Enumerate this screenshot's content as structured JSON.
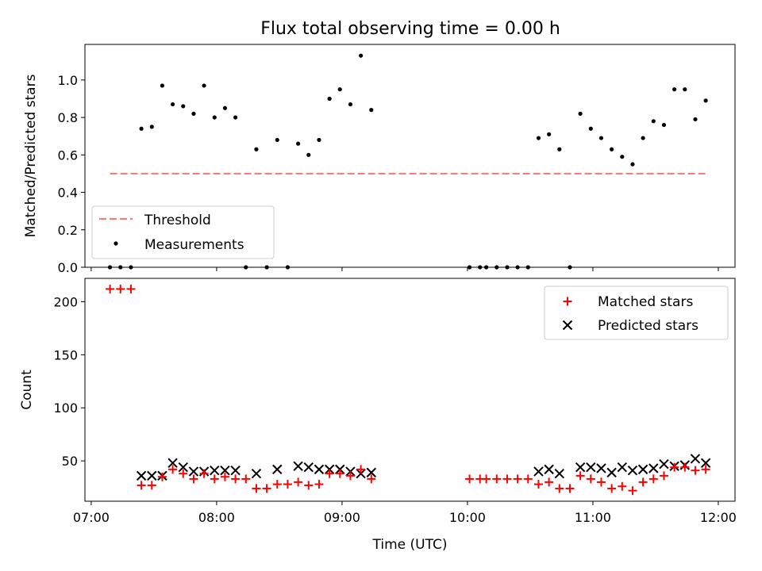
{
  "title": "Flux total observing time = 0.00 h",
  "chart_data": [
    {
      "type": "scatter",
      "ylabel": "Matched/Predicted stars",
      "ylim": [
        0,
        1.19
      ],
      "yticks": [
        "0.0",
        "0.2",
        "0.4",
        "0.6",
        "0.8",
        "1.0"
      ],
      "legend_position": "lower-left",
      "threshold": {
        "name": "Threshold",
        "value": 0.5,
        "x_start": "07:09",
        "x_end": "11:54",
        "color": "#f08080"
      },
      "series": [
        {
          "name": "Measurements",
          "color": "#000000",
          "points": [
            [
              "07:09",
              0.0
            ],
            [
              "07:14",
              0.0
            ],
            [
              "07:19",
              0.0
            ],
            [
              "07:24",
              0.74
            ],
            [
              "07:29",
              0.75
            ],
            [
              "07:34",
              0.97
            ],
            [
              "07:39",
              0.87
            ],
            [
              "07:44",
              0.86
            ],
            [
              "07:49",
              0.82
            ],
            [
              "07:54",
              0.97
            ],
            [
              "07:59",
              0.8
            ],
            [
              "08:04",
              0.85
            ],
            [
              "08:09",
              0.8
            ],
            [
              "08:14",
              0.0
            ],
            [
              "08:19",
              0.63
            ],
            [
              "08:24",
              0.0
            ],
            [
              "08:29",
              0.68
            ],
            [
              "08:34",
              0.0
            ],
            [
              "08:39",
              0.66
            ],
            [
              "08:44",
              0.6
            ],
            [
              "08:49",
              0.68
            ],
            [
              "08:54",
              0.9
            ],
            [
              "08:59",
              0.95
            ],
            [
              "09:04",
              0.87
            ],
            [
              "09:09",
              1.13
            ],
            [
              "09:14",
              0.84
            ],
            [
              "10:01",
              0.0
            ],
            [
              "10:06",
              0.0
            ],
            [
              "10:09",
              0.0
            ],
            [
              "10:14",
              0.0
            ],
            [
              "10:19",
              0.0
            ],
            [
              "10:24",
              0.0
            ],
            [
              "10:29",
              0.0
            ],
            [
              "10:34",
              0.69
            ],
            [
              "10:39",
              0.71
            ],
            [
              "10:44",
              0.63
            ],
            [
              "10:49",
              0.0
            ],
            [
              "10:54",
              0.82
            ],
            [
              "10:59",
              0.74
            ],
            [
              "11:04",
              0.69
            ],
            [
              "11:09",
              0.63
            ],
            [
              "11:14",
              0.59
            ],
            [
              "11:19",
              0.55
            ],
            [
              "11:24",
              0.69
            ],
            [
              "11:29",
              0.78
            ],
            [
              "11:34",
              0.76
            ],
            [
              "11:39",
              0.95
            ],
            [
              "11:44",
              0.95
            ],
            [
              "11:49",
              0.79
            ],
            [
              "11:54",
              0.89
            ]
          ]
        }
      ]
    },
    {
      "type": "scatter",
      "ylabel": "Count",
      "xlabel": "Time (UTC)",
      "ylim": [
        12,
        222
      ],
      "yticks": [
        "50",
        "100",
        "150",
        "200"
      ],
      "xticks": [
        "07:00",
        "08:00",
        "09:00",
        "10:00",
        "11:00",
        "12:00"
      ],
      "xlim": [
        "06:57",
        "12:08"
      ],
      "legend_position": "upper-right",
      "series": [
        {
          "name": "Matched stars",
          "color": "#ff0000",
          "marker": "+",
          "points": [
            [
              "07:09",
              212
            ],
            [
              "07:14",
              212
            ],
            [
              "07:19",
              212
            ],
            [
              "07:24",
              27
            ],
            [
              "07:29",
              27
            ],
            [
              "07:34",
              35
            ],
            [
              "07:39",
              42
            ],
            [
              "07:44",
              38
            ],
            [
              "07:49",
              33
            ],
            [
              "07:54",
              38
            ],
            [
              "07:59",
              33
            ],
            [
              "08:04",
              35
            ],
            [
              "08:09",
              33
            ],
            [
              "08:14",
              33
            ],
            [
              "08:19",
              24
            ],
            [
              "08:24",
              24
            ],
            [
              "08:29",
              28
            ],
            [
              "08:34",
              28
            ],
            [
              "08:39",
              30
            ],
            [
              "08:44",
              27
            ],
            [
              "08:49",
              28
            ],
            [
              "08:54",
              38
            ],
            [
              "08:59",
              38
            ],
            [
              "09:04",
              36
            ],
            [
              "09:09",
              42
            ],
            [
              "09:14",
              33
            ],
            [
              "10:01",
              33
            ],
            [
              "10:06",
              33
            ],
            [
              "10:09",
              33
            ],
            [
              "10:14",
              33
            ],
            [
              "10:19",
              33
            ],
            [
              "10:24",
              33
            ],
            [
              "10:29",
              33
            ],
            [
              "10:34",
              28
            ],
            [
              "10:39",
              30
            ],
            [
              "10:44",
              24
            ],
            [
              "10:49",
              24
            ],
            [
              "10:54",
              36
            ],
            [
              "10:59",
              33
            ],
            [
              "11:04",
              30
            ],
            [
              "11:09",
              24
            ],
            [
              "11:14",
              26
            ],
            [
              "11:19",
              22
            ],
            [
              "11:24",
              30
            ],
            [
              "11:29",
              33
            ],
            [
              "11:34",
              36
            ],
            [
              "11:39",
              44
            ],
            [
              "11:44",
              44
            ],
            [
              "11:49",
              41
            ],
            [
              "11:54",
              42
            ]
          ]
        },
        {
          "name": "Predicted stars",
          "color": "#000000",
          "marker": "x",
          "points": [
            [
              "07:24",
              36
            ],
            [
              "07:29",
              36
            ],
            [
              "07:34",
              36
            ],
            [
              "07:39",
              48
            ],
            [
              "07:44",
              44
            ],
            [
              "07:49",
              40
            ],
            [
              "07:54",
              40
            ],
            [
              "07:59",
              41
            ],
            [
              "08:04",
              41
            ],
            [
              "08:09",
              41
            ],
            [
              "08:19",
              38
            ],
            [
              "08:29",
              42
            ],
            [
              "08:39",
              45
            ],
            [
              "08:44",
              44
            ],
            [
              "08:49",
              42
            ],
            [
              "08:54",
              42
            ],
            [
              "08:59",
              42
            ],
            [
              "09:04",
              40
            ],
            [
              "09:09",
              38
            ],
            [
              "09:14",
              39
            ],
            [
              "10:34",
              40
            ],
            [
              "10:39",
              42
            ],
            [
              "10:44",
              38
            ],
            [
              "10:54",
              44
            ],
            [
              "10:59",
              44
            ],
            [
              "11:04",
              43
            ],
            [
              "11:09",
              39
            ],
            [
              "11:14",
              44
            ],
            [
              "11:19",
              41
            ],
            [
              "11:24",
              42
            ],
            [
              "11:29",
              43
            ],
            [
              "11:34",
              47
            ],
            [
              "11:39",
              45
            ],
            [
              "11:44",
              46
            ],
            [
              "11:49",
              52
            ],
            [
              "11:54",
              48
            ]
          ]
        }
      ]
    }
  ]
}
